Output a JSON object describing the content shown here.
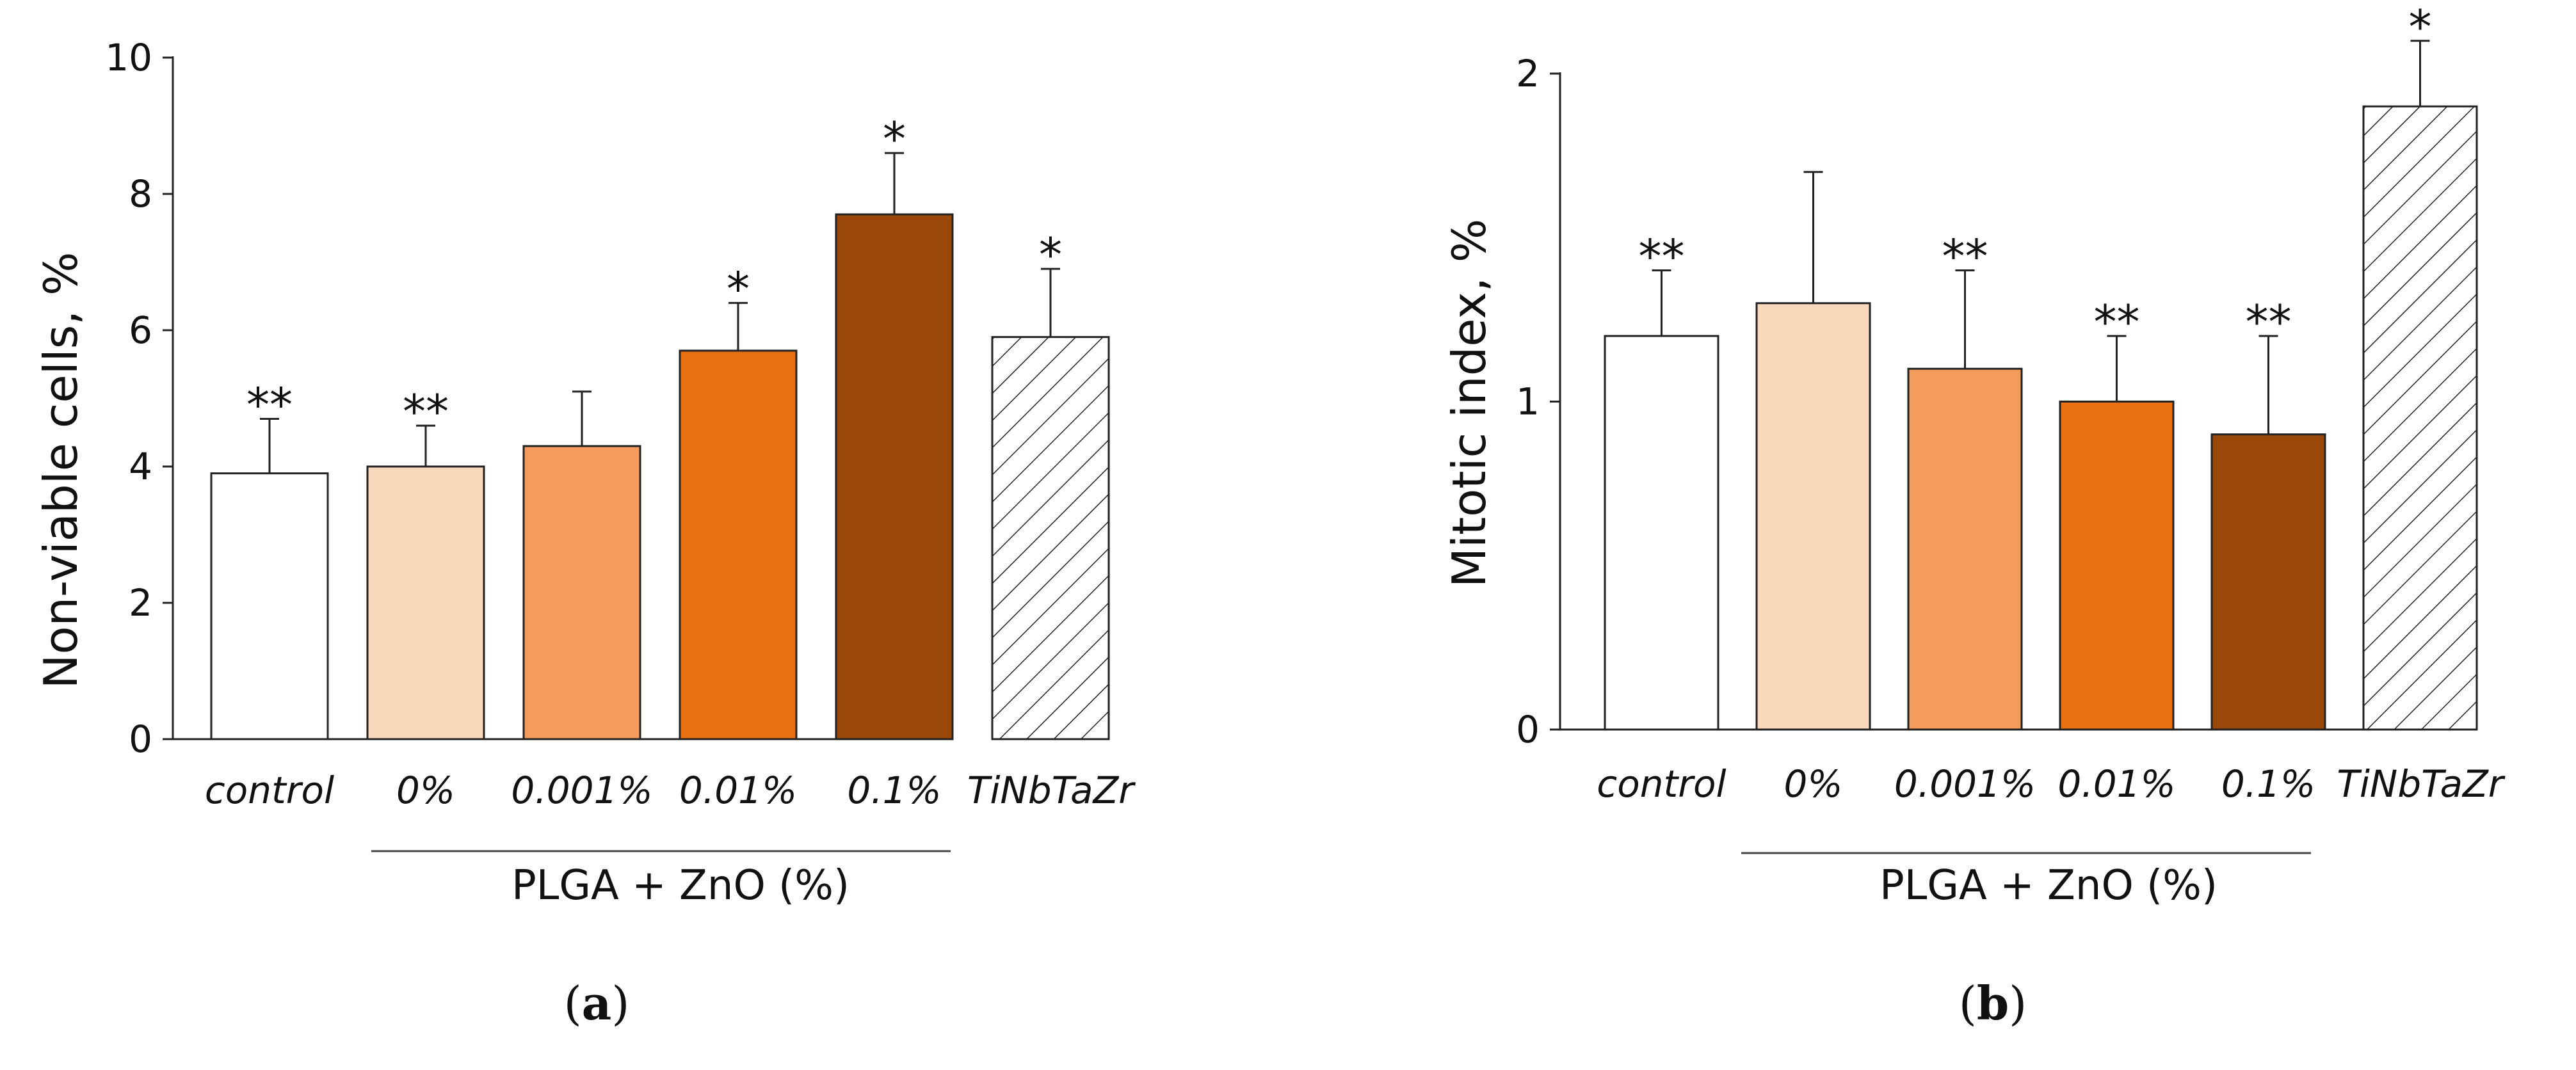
{
  "chart_data": [
    {
      "type": "bar",
      "panel": "a",
      "panel_label": {
        "open": "(",
        "letter": "a",
        "close": ")"
      },
      "ylabel": "Non-viable cells, %",
      "ylim": [
        0,
        10
      ],
      "yticks": [
        0,
        2,
        4,
        6,
        8,
        10
      ],
      "ytick_labels": [
        "0",
        "2",
        "4",
        "6",
        "8",
        "10"
      ],
      "categories": [
        "control",
        "0%",
        "0.001%",
        "0.01%",
        "0.1%",
        "TiNbTaZr"
      ],
      "values": [
        3.9,
        4.0,
        4.3,
        5.7,
        7.7,
        5.9
      ],
      "errors": [
        0.8,
        0.6,
        0.8,
        0.7,
        0.9,
        1.0
      ],
      "significance": [
        "**",
        "**",
        "",
        "*",
        "*",
        "*"
      ],
      "colors": [
        "#ffffff",
        "#fad8bb",
        "#f49c5b",
        "#e8700f",
        "#9a470a",
        "hatched"
      ],
      "group_label": "PLGA + ZnO (%)"
    },
    {
      "type": "bar",
      "panel": "b",
      "panel_label": {
        "open": "(",
        "letter": "b",
        "close": ")"
      },
      "ylabel": "Mitotic index, %",
      "ylim": [
        0,
        2
      ],
      "yticks": [
        0,
        1,
        2
      ],
      "ytick_labels": [
        "0",
        "1",
        "2"
      ],
      "categories": [
        "control",
        "0%",
        "0.001%",
        "0.01%",
        "0.1%",
        "TiNbTaZr"
      ],
      "values": [
        1.2,
        1.3,
        1.1,
        1.0,
        0.9,
        1.9
      ],
      "errors": [
        0.2,
        0.4,
        0.3,
        0.2,
        0.3,
        0.2
      ],
      "significance": [
        "**",
        "",
        "**",
        "**",
        "**",
        "*"
      ],
      "colors": [
        "#ffffff",
        "#fad8bb",
        "#f49c5b",
        "#e8700f",
        "#9a470a",
        "hatched"
      ],
      "group_label": "PLGA + ZnO (%)"
    }
  ]
}
